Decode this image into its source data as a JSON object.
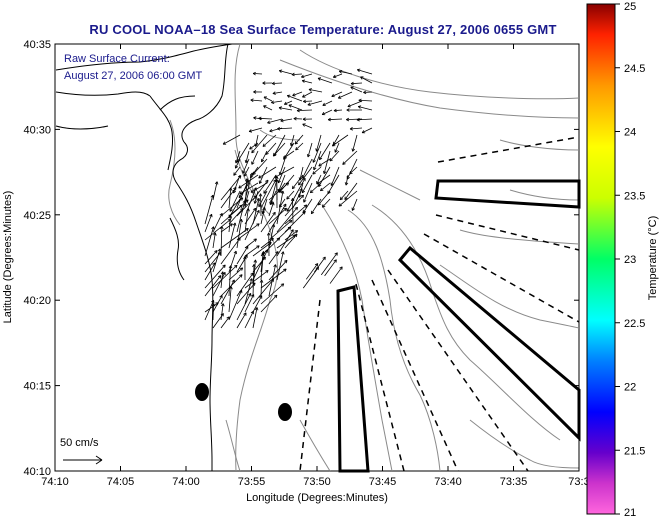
{
  "title": "RU COOL  NOAA–18  Sea Surface Temperature:  August 27, 2006 0655 GMT",
  "annotation": {
    "line1": "Raw Surface Current:",
    "line2": "August 27, 2006 06:00 GMT"
  },
  "scale_label": "50 cm/s",
  "axes": {
    "xlabel": "Longitude (Degrees:Minutes)",
    "ylabel": "Latitude (Degrees:Minutes)",
    "x_ticks": [
      "74:10",
      "74:05",
      "74:00",
      "73:55",
      "73:50",
      "73:45",
      "73:40",
      "73:35",
      "73:3"
    ],
    "y_ticks": [
      "40:35",
      "40:30",
      "40:25",
      "40:20",
      "40:15",
      "40:10"
    ]
  },
  "colorbar": {
    "label": "Temperature (°C)",
    "min": 21,
    "max": 25,
    "ticks": [
      "25",
      "24.5",
      "24",
      "23.5",
      "23",
      "22.5",
      "22",
      "21.5",
      "21"
    ]
  },
  "colors": {
    "title": "#1a1a8c",
    "annotation": "#1a1a8c",
    "contour": "#8a8a8a",
    "coastline": "#000000"
  }
}
